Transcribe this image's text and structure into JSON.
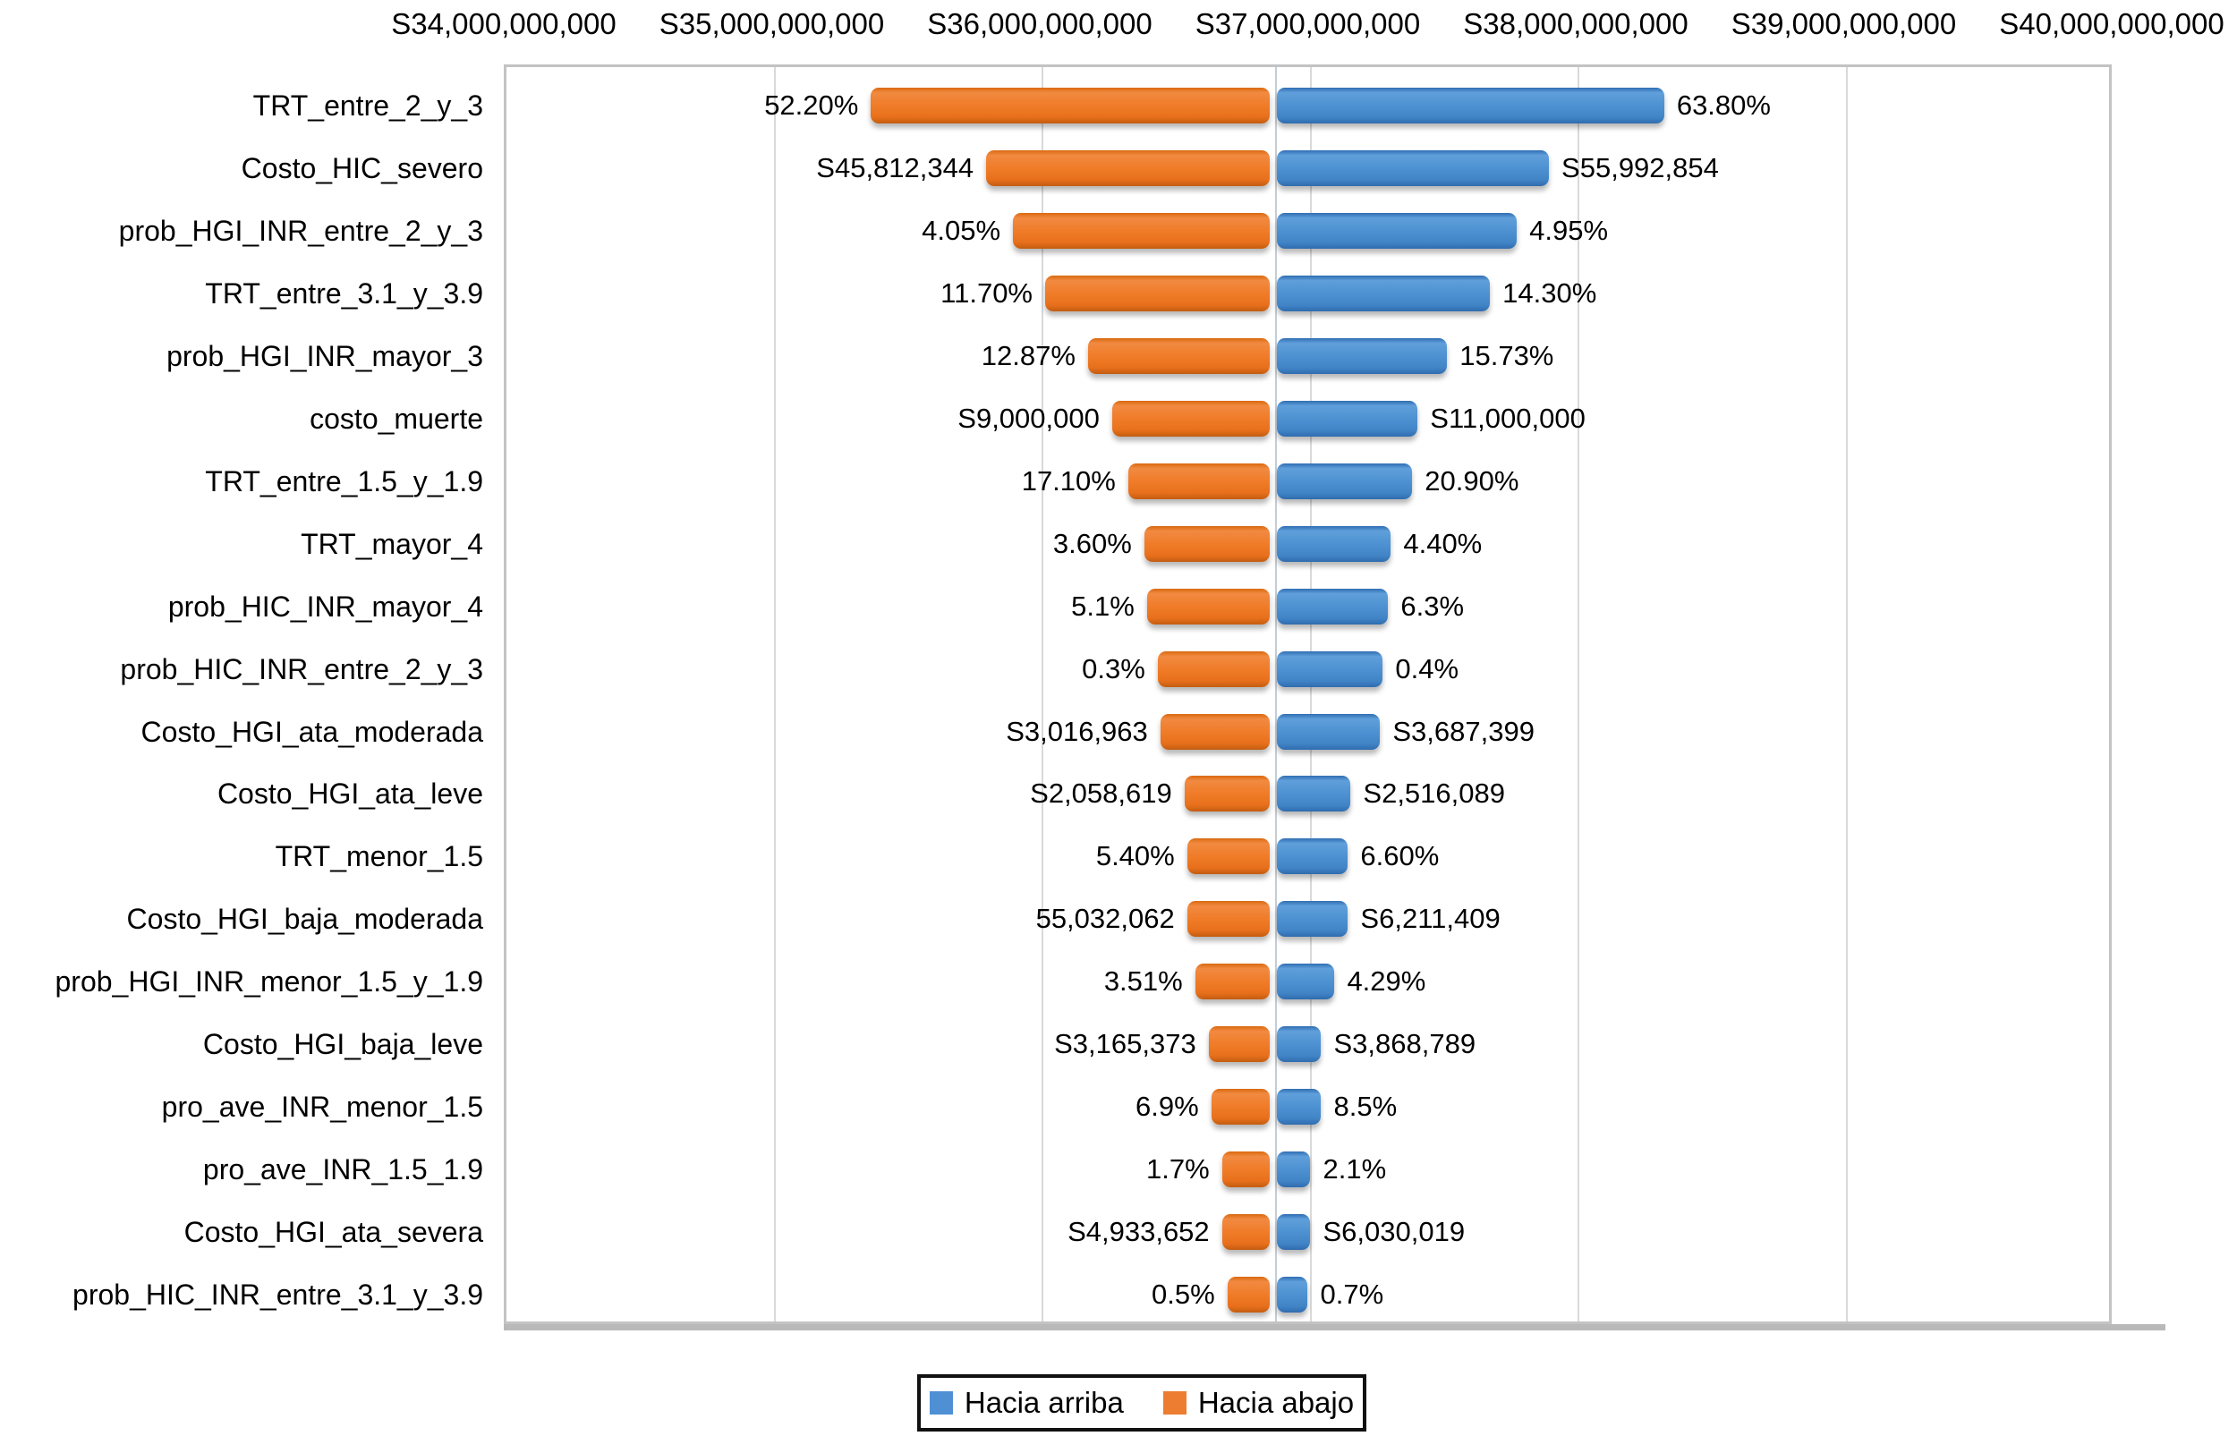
{
  "chart_data": {
    "type": "bar",
    "subtype": "tornado-diagram",
    "orientation": "horizontal",
    "grid": "vertical-on",
    "baseline_value_billions": 36.87,
    "x_axis": {
      "min": 34,
      "max": 40,
      "unit": "billions",
      "ticks": [
        {
          "value": 34,
          "label": "S34,000,000,000"
        },
        {
          "value": 35,
          "label": "S35,000,000,000"
        },
        {
          "value": 36,
          "label": "S36,000,000,000"
        },
        {
          "value": 37,
          "label": "S37,000,000,000"
        },
        {
          "value": 38,
          "label": "S38,000,000,000"
        },
        {
          "value": 39,
          "label": "S39,000,000,000"
        },
        {
          "value": 40,
          "label": "S40,000,000,000"
        }
      ]
    },
    "rows": [
      {
        "category": "TRT_entre_2_y_3",
        "low_label": "52.20%",
        "high_label": "63.80%",
        "low": 35.37,
        "high": 38.33
      },
      {
        "category": "Costo_HIC_severo",
        "low_label": "S45,812,344",
        "high_label": "S55,992,854",
        "low": 35.8,
        "high": 37.9
      },
      {
        "category": "prob_HGI_INR_entre_2_y_3",
        "low_label": "4.05%",
        "high_label": "4.95%",
        "low": 35.9,
        "high": 37.78
      },
      {
        "category": "TRT_entre_3.1_y_3.9",
        "low_label": "11.70%",
        "high_label": "14.30%",
        "low": 36.02,
        "high": 37.68
      },
      {
        "category": "prob_HGI_INR_mayor_3",
        "low_label": "12.87%",
        "high_label": "15.73%",
        "low": 36.18,
        "high": 37.52
      },
      {
        "category": "costo_muerte",
        "low_label": "S9,000,000",
        "high_label": "S11,000,000",
        "low": 36.27,
        "high": 37.41
      },
      {
        "category": "TRT_entre_1.5_y_1.9",
        "low_label": "17.10%",
        "high_label": "20.90%",
        "low": 36.33,
        "high": 37.39
      },
      {
        "category": "TRT_mayor_4",
        "low_label": "3.60%",
        "high_label": "4.40%",
        "low": 36.39,
        "high": 37.31
      },
      {
        "category": "prob_HIC_INR_mayor_4",
        "low_label": "5.1%",
        "high_label": "6.3%",
        "low": 36.4,
        "high": 37.3
      },
      {
        "category": "prob_HIC_INR_entre_2_y_3",
        "low_label": "0.3%",
        "high_label": "0.4%",
        "low": 36.44,
        "high": 37.28
      },
      {
        "category": "Costo_HGI_ata_moderada",
        "low_label": "S3,016,963",
        "high_label": "S3,687,399",
        "low": 36.45,
        "high": 37.27
      },
      {
        "category": "Costo_HGI_ata_leve",
        "low_label": "S2,058,619",
        "high_label": "S2,516,089",
        "low": 36.54,
        "high": 37.16
      },
      {
        "category": "TRT_menor_1.5",
        "low_label": "5.40%",
        "high_label": "6.60%",
        "low": 36.55,
        "high": 37.15
      },
      {
        "category": "Costo_HGI_baja_moderada",
        "low_label": "55,032,062",
        "high_label": "S6,211,409",
        "low": 36.55,
        "high": 37.15
      },
      {
        "category": "prob_HGI_INR_menor_1.5_y_1.9",
        "low_label": "3.51%",
        "high_label": "4.29%",
        "low": 36.58,
        "high": 37.1
      },
      {
        "category": "Costo_HGI_baja_leve",
        "low_label": "S3,165,373",
        "high_label": "S3,868,789",
        "low": 36.63,
        "high": 37.05
      },
      {
        "category": "pro_ave_INR_menor_1.5",
        "low_label": "6.9%",
        "high_label": "8.5%",
        "low": 36.64,
        "high": 37.05
      },
      {
        "category": "pro_ave_INR_1.5_1.9",
        "low_label": "1.7%",
        "high_label": "2.1%",
        "low": 36.68,
        "high": 37.01
      },
      {
        "category": "Costo_HGI_ata_severa",
        "low_label": "S4,933,652",
        "high_label": "S6,030,019",
        "low": 36.68,
        "high": 37.01
      },
      {
        "category": "prob_HIC_INR_entre_3.1_y_3.9",
        "low_label": "0.5%",
        "high_label": "0.7%",
        "low": 36.7,
        "high": 37.0
      }
    ],
    "legend": [
      {
        "label": "Hacia arriba",
        "color": "#4f90d5"
      },
      {
        "label": "Hacia abajo",
        "color": "#ed7d31"
      }
    ],
    "legend_position": "bottom",
    "colors": {
      "bar_up_blue": "#4f90d5",
      "bar_down_orange": "#ed7d31",
      "gridline": "#d9d9d9",
      "plot_border": "#c3c3c3",
      "text": "#000000"
    }
  }
}
